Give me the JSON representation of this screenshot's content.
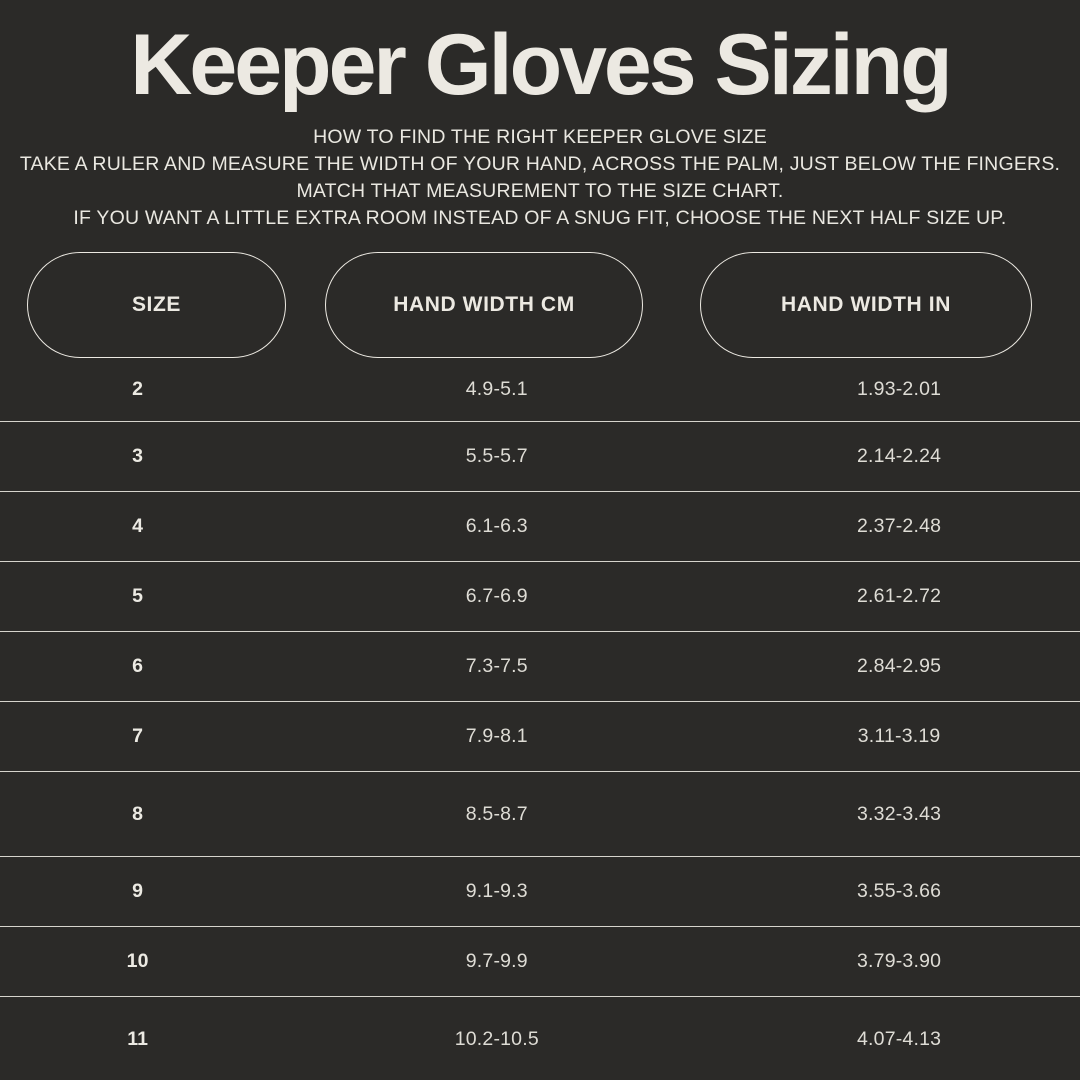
{
  "page": {
    "background": "#2b2a28",
    "text_color": "#eae8e1",
    "line_color": "#d6d4cd"
  },
  "header": {
    "title": "Keeper Gloves Sizing",
    "instructions": [
      "HOW TO FIND THE RIGHT KEEPER GLOVE SIZE",
      "TAKE A RULER AND MEASURE THE WIDTH OF YOUR HAND, ACROSS THE PALM, JUST BELOW THE FINGERS.",
      "MATCH THAT MEASUREMENT TO THE SIZE CHART.",
      "IF YOU WANT A LITTLE EXTRA ROOM INSTEAD OF A SNUG FIT, CHOOSE THE NEXT HALF SIZE UP."
    ]
  },
  "table": {
    "columns": [
      {
        "label": "SIZE"
      },
      {
        "label": "HAND WIDTH CM"
      },
      {
        "label": "HAND WIDTH IN"
      }
    ],
    "rows": [
      {
        "size": "2",
        "hand_width_cm": "4.9-5.1",
        "hand_width_in": "1.93-2.01"
      },
      {
        "size": "3",
        "hand_width_cm": "5.5-5.7",
        "hand_width_in": "2.14-2.24"
      },
      {
        "size": "4",
        "hand_width_cm": "6.1-6.3",
        "hand_width_in": "2.37-2.48"
      },
      {
        "size": "5",
        "hand_width_cm": "6.7-6.9",
        "hand_width_in": "2.61-2.72"
      },
      {
        "size": "6",
        "hand_width_cm": "7.3-7.5",
        "hand_width_in": "2.84-2.95"
      },
      {
        "size": "7",
        "hand_width_cm": "7.9-8.1",
        "hand_width_in": "3.11-3.19"
      },
      {
        "size": "8",
        "hand_width_cm": "8.5-8.7",
        "hand_width_in": "3.32-3.43"
      },
      {
        "size": "9",
        "hand_width_cm": "9.1-9.3",
        "hand_width_in": "3.55-3.66"
      },
      {
        "size": "10",
        "hand_width_cm": "9.7-9.9",
        "hand_width_in": "3.79-3.90"
      },
      {
        "size": "11",
        "hand_width_cm": "10.2-10.5",
        "hand_width_in": "4.07-4.13"
      }
    ]
  }
}
